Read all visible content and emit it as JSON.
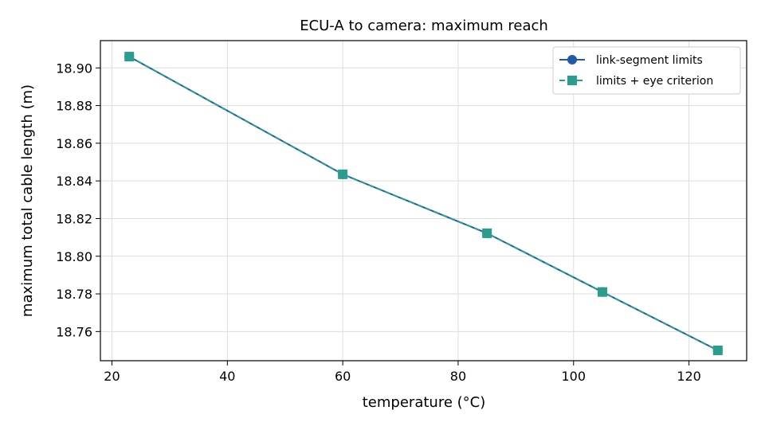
{
  "chart_data": {
    "type": "line",
    "title": "ECU-A to camera: maximum reach",
    "xlabel": "temperature (°C)",
    "ylabel": "maximum total cable length (m)",
    "xlim": [
      18,
      130
    ],
    "ylim": [
      18.7445,
      18.9145
    ],
    "xticks": [
      20,
      40,
      60,
      80,
      100,
      120
    ],
    "yticks": [
      18.76,
      18.78,
      18.8,
      18.82,
      18.84,
      18.86,
      18.88,
      18.9
    ],
    "xtick_labels": [
      "20",
      "40",
      "60",
      "80",
      "100",
      "120"
    ],
    "ytick_labels": [
      "18.76",
      "18.78",
      "18.80",
      "18.82",
      "18.84",
      "18.86",
      "18.88",
      "18.90"
    ],
    "grid": true,
    "legend_position": "top-right",
    "x": [
      23,
      60,
      85,
      105,
      125
    ],
    "series": [
      {
        "name": "link-segment limits",
        "values": [
          18.906,
          18.8435,
          18.8122,
          18.781,
          18.75
        ],
        "color": "#1f5aa6",
        "marker": "circle",
        "line_style": "solid"
      },
      {
        "name": "limits + eye criterion",
        "values": [
          18.906,
          18.8435,
          18.8122,
          18.781,
          18.75
        ],
        "color": "#2a9d8f",
        "marker": "square",
        "line_style": "dashed"
      }
    ]
  }
}
